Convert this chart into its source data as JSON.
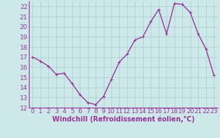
{
  "x": [
    0,
    1,
    2,
    3,
    4,
    5,
    6,
    7,
    8,
    9,
    10,
    11,
    12,
    13,
    14,
    15,
    16,
    17,
    18,
    19,
    20,
    21,
    22,
    23
  ],
  "y": [
    17.0,
    16.6,
    16.1,
    15.3,
    15.4,
    14.4,
    13.3,
    12.5,
    12.3,
    13.1,
    14.8,
    16.5,
    17.3,
    18.7,
    19.0,
    20.5,
    21.7,
    19.3,
    22.3,
    22.2,
    21.4,
    19.3,
    17.8,
    15.2
  ],
  "line_color": "#993399",
  "marker": "+",
  "bg_color": "#cce8e8",
  "grid_color": "#aacaca",
  "tick_color": "#993399",
  "xlabel": "Windchill (Refroidissement éolien,°C)",
  "ylim": [
    12,
    22.5
  ],
  "xlim": [
    -0.5,
    23.5
  ],
  "yticks": [
    12,
    13,
    14,
    15,
    16,
    17,
    18,
    19,
    20,
    21,
    22
  ],
  "xticks": [
    0,
    1,
    2,
    3,
    4,
    5,
    6,
    7,
    8,
    9,
    10,
    11,
    12,
    13,
    14,
    15,
    16,
    17,
    18,
    19,
    20,
    21,
    22,
    23
  ],
  "xlabel_fontsize": 7,
  "tick_fontsize": 6.5,
  "line_width": 1.0,
  "marker_size": 3
}
